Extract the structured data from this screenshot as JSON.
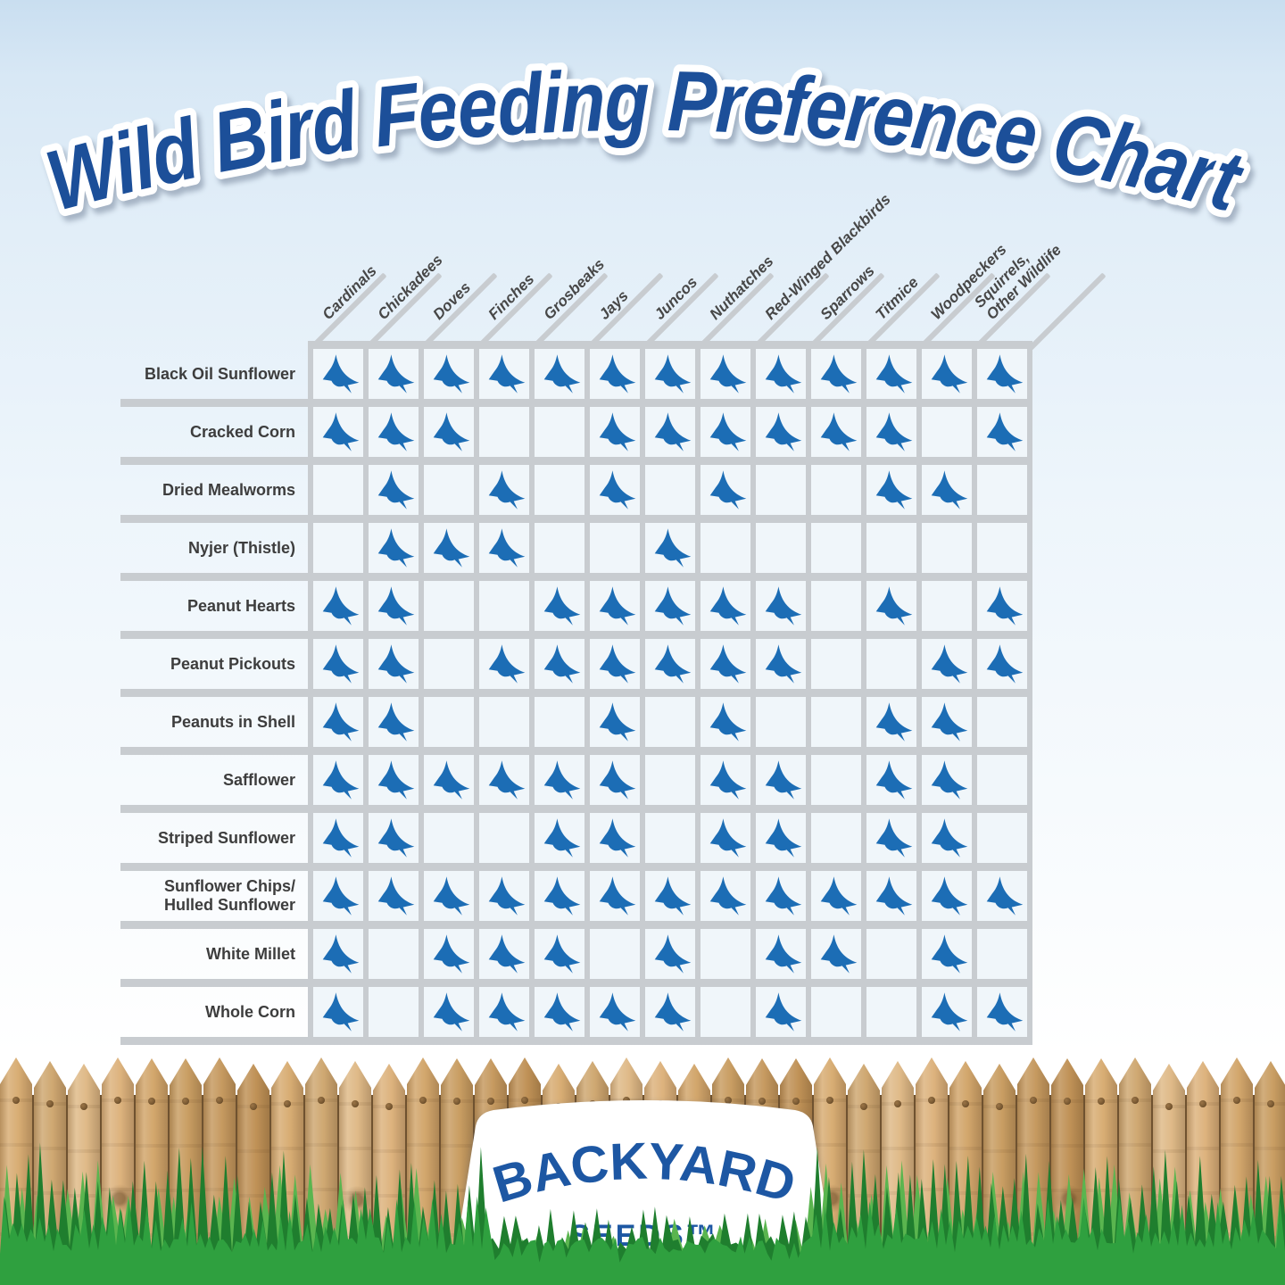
{
  "title": "Wild Bird Feeding Preference Chart",
  "logo": {
    "brand": "BACKYARD",
    "sub": "SEEDS™"
  },
  "chart_data": {
    "type": "table",
    "columns": [
      [
        "Cardinals"
      ],
      [
        "Chickadees"
      ],
      [
        "Doves"
      ],
      [
        "Finches"
      ],
      [
        "Grosbeaks"
      ],
      [
        "Jays"
      ],
      [
        "Juncos"
      ],
      [
        "Nuthatches"
      ],
      [
        "Red-Winged Blackbirds"
      ],
      [
        "Sparrows"
      ],
      [
        "Titmice"
      ],
      [
        "Woodpeckers"
      ],
      [
        "Squirrels,",
        "Other Wildlife"
      ]
    ],
    "rows": [
      {
        "label": [
          "Black Oil Sunflower"
        ],
        "cells": [
          1,
          1,
          1,
          1,
          1,
          1,
          1,
          1,
          1,
          1,
          1,
          1,
          1
        ]
      },
      {
        "label": [
          "Cracked Corn"
        ],
        "cells": [
          1,
          1,
          1,
          0,
          0,
          1,
          1,
          1,
          1,
          1,
          1,
          0,
          1
        ]
      },
      {
        "label": [
          "Dried Mealworms"
        ],
        "cells": [
          0,
          1,
          0,
          1,
          0,
          1,
          0,
          1,
          0,
          0,
          1,
          1,
          0
        ]
      },
      {
        "label": [
          "Nyjer (Thistle)"
        ],
        "cells": [
          0,
          1,
          1,
          1,
          0,
          0,
          1,
          0,
          0,
          0,
          0,
          0,
          0
        ]
      },
      {
        "label": [
          "Peanut Hearts"
        ],
        "cells": [
          1,
          1,
          0,
          0,
          1,
          1,
          1,
          1,
          1,
          0,
          1,
          0,
          1
        ]
      },
      {
        "label": [
          "Peanut Pickouts"
        ],
        "cells": [
          1,
          1,
          0,
          1,
          1,
          1,
          1,
          1,
          1,
          0,
          0,
          1,
          1
        ]
      },
      {
        "label": [
          "Peanuts in Shell"
        ],
        "cells": [
          1,
          1,
          0,
          0,
          0,
          1,
          0,
          1,
          0,
          0,
          1,
          1,
          0
        ]
      },
      {
        "label": [
          "Safflower"
        ],
        "cells": [
          1,
          1,
          1,
          1,
          1,
          1,
          0,
          1,
          1,
          0,
          1,
          1,
          0
        ]
      },
      {
        "label": [
          "Striped Sunflower"
        ],
        "cells": [
          1,
          1,
          0,
          0,
          1,
          1,
          0,
          1,
          1,
          0,
          1,
          1,
          0
        ]
      },
      {
        "label": [
          "Sunflower Chips/",
          "Hulled Sunflower"
        ],
        "cells": [
          1,
          1,
          1,
          1,
          1,
          1,
          1,
          1,
          1,
          1,
          1,
          1,
          1
        ]
      },
      {
        "label": [
          "White Millet"
        ],
        "cells": [
          1,
          0,
          1,
          1,
          1,
          0,
          1,
          0,
          1,
          1,
          0,
          1,
          0
        ]
      },
      {
        "label": [
          "Whole Corn"
        ],
        "cells": [
          1,
          0,
          1,
          1,
          1,
          1,
          1,
          0,
          1,
          0,
          0,
          1,
          1
        ]
      }
    ]
  },
  "icons": {
    "preference": "bird-icon"
  },
  "colors": {
    "title_blue": "#1c4f99",
    "logo_blue": "#1d57a3",
    "bird_blue": "#1c6db5",
    "grid_line": "#c8ccd0",
    "label_gray": "#3d3d3d",
    "header_gray": "#474747",
    "wood": [
      "#d8ad74",
      "#c99e63",
      "#dfba88",
      "#c09257",
      "#d2a66c",
      "#cfa872",
      "#c69a60",
      "#ddb37e"
    ],
    "wood_gap": "#6f5230",
    "nail": "#7a5a33",
    "grass": {
      "back": "#5ab54f",
      "mid": "#1f7e2e",
      "front": "#2fa03f"
    }
  }
}
